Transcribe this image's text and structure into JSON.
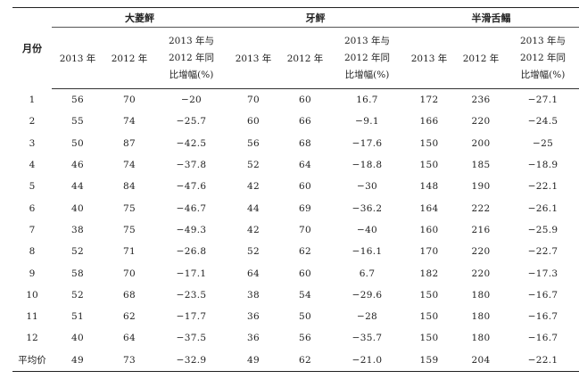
{
  "table": {
    "month_header": "月份",
    "groups": [
      "大菱鲆",
      "牙鲆",
      "半滑舌鳎"
    ],
    "sub_headers": {
      "y2013": "2013 年",
      "y2012": "2012 年",
      "compare_lines": [
        "2013 年与",
        "2012 年同",
        "比增幅(%)"
      ]
    },
    "rows": [
      {
        "month": "1",
        "v": [
          "56",
          "70",
          "−20",
          "70",
          "60",
          "16.7",
          "172",
          "236",
          "−27.1"
        ]
      },
      {
        "month": "2",
        "v": [
          "55",
          "74",
          "−25.7",
          "60",
          "66",
          "−9.1",
          "166",
          "220",
          "−24.5"
        ]
      },
      {
        "month": "3",
        "v": [
          "50",
          "87",
          "−42.5",
          "56",
          "68",
          "−17.6",
          "150",
          "200",
          "−25"
        ]
      },
      {
        "month": "4",
        "v": [
          "46",
          "74",
          "−37.8",
          "52",
          "64",
          "−18.8",
          "150",
          "185",
          "−18.9"
        ]
      },
      {
        "month": "5",
        "v": [
          "44",
          "84",
          "−47.6",
          "42",
          "60",
          "−30",
          "148",
          "190",
          "−22.1"
        ]
      },
      {
        "month": "6",
        "v": [
          "40",
          "75",
          "−46.7",
          "44",
          "69",
          "−36.2",
          "164",
          "222",
          "−26.1"
        ]
      },
      {
        "month": "7",
        "v": [
          "38",
          "75",
          "−49.3",
          "42",
          "70",
          "−40",
          "160",
          "216",
          "−25.9"
        ]
      },
      {
        "month": "8",
        "v": [
          "52",
          "71",
          "−26.8",
          "52",
          "62",
          "−16.1",
          "170",
          "220",
          "−22.7"
        ]
      },
      {
        "month": "9",
        "v": [
          "58",
          "70",
          "−17.1",
          "64",
          "60",
          "6.7",
          "182",
          "220",
          "−17.3"
        ]
      },
      {
        "month": "10",
        "v": [
          "52",
          "68",
          "−23.5",
          "38",
          "54",
          "−29.6",
          "150",
          "180",
          "−16.7"
        ]
      },
      {
        "month": "11",
        "v": [
          "51",
          "62",
          "−17.7",
          "36",
          "50",
          "−28",
          "150",
          "180",
          "−16.7"
        ]
      },
      {
        "month": "12",
        "v": [
          "40",
          "64",
          "−37.5",
          "36",
          "56",
          "−35.7",
          "150",
          "180",
          "−16.7"
        ]
      },
      {
        "month": "平均价",
        "v": [
          "49",
          "73",
          "−32.9",
          "49",
          "62",
          "−21.0",
          "159",
          "204",
          "−22.1"
        ]
      }
    ]
  }
}
